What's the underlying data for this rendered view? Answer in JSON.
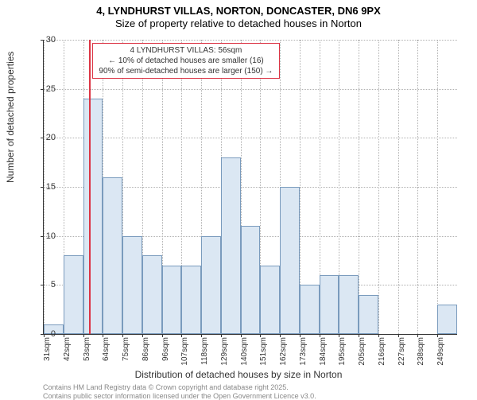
{
  "title_main": "4, LYNDHURST VILLAS, NORTON, DONCASTER, DN6 9PX",
  "title_sub": "Size of property relative to detached houses in Norton",
  "y_axis_title": "Number of detached properties",
  "x_axis_title": "Distribution of detached houses by size in Norton",
  "footer1": "Contains HM Land Registry data © Crown copyright and database right 2025.",
  "footer2": "Contains public sector information licensed under the Open Government Licence v3.0.",
  "annotation": {
    "line1": "4 LYNDHURST VILLAS: 56sqm",
    "line2": "← 10% of detached houses are smaller (16)",
    "line3": "90% of semi-detached houses are larger (150) →"
  },
  "chart": {
    "type": "histogram",
    "ylim": [
      0,
      30
    ],
    "ytick_step": 5,
    "background_color": "#ffffff",
    "grid_color": "#b0b0b0",
    "bar_color": "#dbe7f3",
    "bar_border_color": "#7a9bbd",
    "ref_line_color": "#dc3545",
    "annotation_border_color": "#dc3545",
    "ref_value_index": 2.3,
    "x_labels": [
      "31sqm",
      "42sqm",
      "53sqm",
      "64sqm",
      "75sqm",
      "86sqm",
      "96sqm",
      "107sqm",
      "118sqm",
      "129sqm",
      "140sqm",
      "151sqm",
      "162sqm",
      "173sqm",
      "184sqm",
      "195sqm",
      "205sqm",
      "216sqm",
      "227sqm",
      "238sqm",
      "249sqm"
    ],
    "values": [
      1,
      8,
      24,
      16,
      10,
      8,
      7,
      7,
      10,
      18,
      11,
      7,
      15,
      5,
      6,
      6,
      4,
      0,
      0,
      0,
      3
    ]
  }
}
